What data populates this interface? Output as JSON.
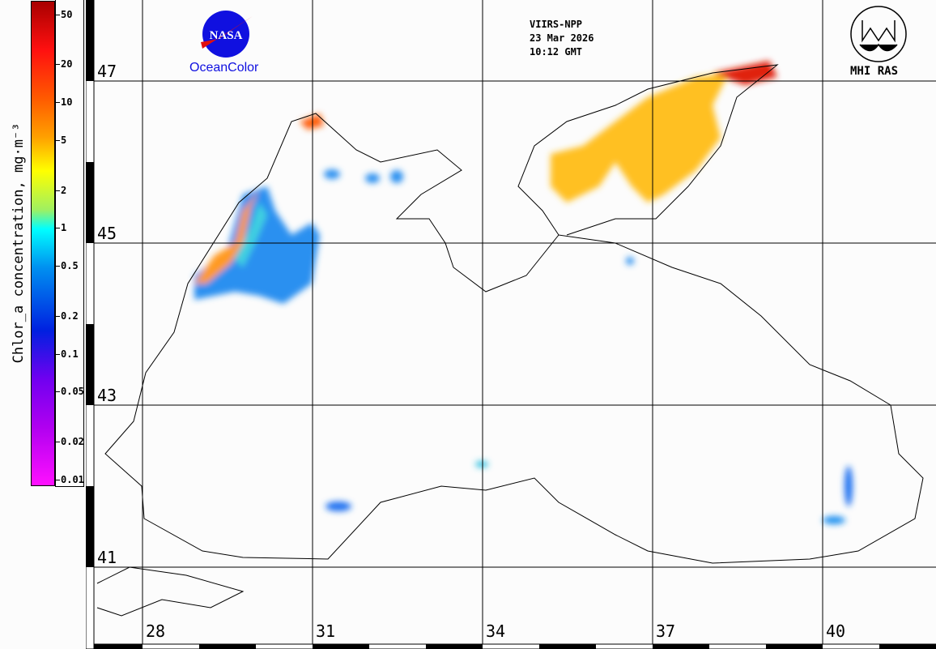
{
  "colorbar": {
    "title": "Chlor_a concentration, mg·m⁻³",
    "ticks": [
      {
        "label": "50",
        "value": 50
      },
      {
        "label": "20",
        "value": 20
      },
      {
        "label": "10",
        "value": 10
      },
      {
        "label": "5",
        "value": 5
      },
      {
        "label": "2",
        "value": 2
      },
      {
        "label": "1",
        "value": 1
      },
      {
        "label": "0.5",
        "value": 0.5
      },
      {
        "label": "0.2",
        "value": 0.2
      },
      {
        "label": "0.1",
        "value": 0.1
      },
      {
        "label": "0.05",
        "value": 0.05
      },
      {
        "label": "0.02",
        "value": 0.02
      },
      {
        "label": "0.01",
        "value": 0.01
      }
    ],
    "scale": "log",
    "range": [
      0.01,
      64
    ]
  },
  "header": {
    "sensor": "VIIRS-NPP",
    "date": "23 Mar 2026",
    "time": "10:12 GMT",
    "left_logo_text": "OceanColor",
    "nasa_logo_text": "NASA",
    "right_logo_text": "MHI RAS"
  },
  "grid": {
    "latitudes": [
      "47",
      "45",
      "43",
      "41"
    ],
    "longitudes": [
      "28",
      "31",
      "34",
      "37",
      "40"
    ]
  },
  "colors": {
    "land": "#fcfcfc",
    "coast": "#000000",
    "low": "#1e90ff",
    "high": "#ff2000"
  }
}
